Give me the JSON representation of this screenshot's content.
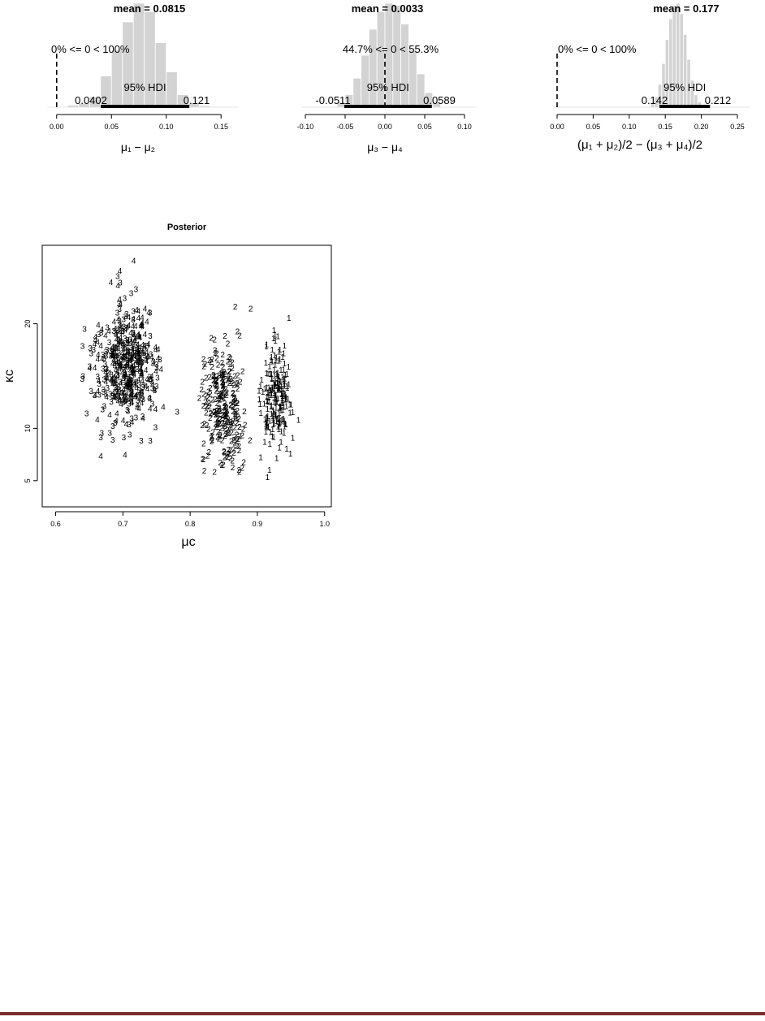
{
  "colors": {
    "bar": "#d3d3d3",
    "bar_stroke": "#ffffff",
    "hdi": "#000000",
    "group1": "#ff0000",
    "group2": "#0000ff",
    "group3": "#00d000",
    "group4": "#000000",
    "footer_rule": "#7b2c2c"
  },
  "chart_data": [
    {
      "type": "bar",
      "subtype": "posterior-histogram",
      "mean_label": "mean = 0.0815",
      "compare_label": "0% <= 0 < 100%",
      "hdi_label": "95% HDI",
      "hdi_low_label": "0.0402",
      "hdi_high_label": "0.121",
      "hdi": [
        0.0402,
        0.121
      ],
      "compare_value": 0,
      "xlabel": "μ₁ − μ₂",
      "xlim": [
        -0.005,
        0.155
      ],
      "xticks": [
        "0.00",
        "0.05",
        "0.10",
        "0.15"
      ],
      "xtick_values": [
        0.0,
        0.05,
        0.1,
        0.15
      ],
      "bin_start": 0.01,
      "bin_width": 0.01,
      "density": [
        0.02,
        0.04,
        0.1,
        0.3,
        0.55,
        0.82,
        1.0,
        0.92,
        0.62,
        0.34,
        0.12,
        0.04,
        0.015
      ]
    },
    {
      "type": "bar",
      "subtype": "posterior-histogram",
      "mean_label": "mean = 0.0033",
      "compare_label": "44.7% <= 0 < 55.3%",
      "hdi_label": "95% HDI",
      "hdi_low_label": "-0.0511",
      "hdi_high_label": "0.0589",
      "hdi": [
        -0.0511,
        0.0589
      ],
      "compare_value": 0,
      "xlabel": "μ₃ − μ₄",
      "xlim": [
        -0.1,
        0.1
      ],
      "xticks": [
        "-0.10",
        "-0.05",
        "0.00",
        "0.05",
        "0.10"
      ],
      "xtick_values": [
        -0.1,
        -0.05,
        0.0,
        0.05,
        0.1
      ],
      "bin_start": -0.06,
      "bin_width": 0.01,
      "density": [
        0.05,
        0.12,
        0.28,
        0.5,
        0.75,
        0.92,
        1.0,
        0.98,
        0.8,
        0.55,
        0.32,
        0.14,
        0.05
      ]
    },
    {
      "type": "bar",
      "subtype": "posterior-histogram",
      "mean_label": "mean = 0.177",
      "compare_label": "0% <= 0 < 100%",
      "hdi_label": "95% HDI",
      "hdi_low_label": "0.142",
      "hdi_high_label": "0.212",
      "hdi": [
        0.142,
        0.212
      ],
      "compare_value": 0,
      "xlabel": "(μ₁ + μ₂)/2 − (μ₃ + μ₄)/2",
      "xlim": [
        0.0,
        0.25
      ],
      "xticks": [
        "0.00",
        "0.05",
        "0.10",
        "0.15",
        "0.20",
        "0.25"
      ],
      "xtick_values": [
        0.0,
        0.05,
        0.1,
        0.15,
        0.2,
        0.25
      ],
      "bin_start": 0.13,
      "bin_width": 0.005,
      "density": [
        0.04,
        0.1,
        0.22,
        0.42,
        0.65,
        0.85,
        0.98,
        1.0,
        0.9,
        0.7,
        0.46,
        0.26,
        0.12,
        0.05
      ]
    },
    {
      "type": "scatter",
      "title": "Posterior",
      "xlabel": "μc",
      "ylabel": "κc",
      "xlim": [
        0.58,
        1.01
      ],
      "ylim": [
        2.5,
        27.5
      ],
      "xticks": [
        "0.6",
        "0.7",
        "0.8",
        "0.9",
        "1.0"
      ],
      "xtick_values": [
        0.6,
        0.7,
        0.8,
        0.9,
        1.0
      ],
      "yticks": [
        "5",
        "10",
        "20"
      ],
      "ytick_values": [
        5,
        10,
        20
      ],
      "series": [
        {
          "name": "1",
          "color_key": "group1",
          "x_mean": 0.928,
          "x_sd": 0.012,
          "y_mean": 13.0,
          "y_sd": 2.3,
          "y_min": 5.0,
          "y_max": 21.0,
          "n": 200,
          "outliers": [
            [
              0.915,
              5.3
            ],
            [
              0.918,
              6.0
            ],
            [
              0.905,
              7.2
            ],
            [
              0.947,
              20.5
            ]
          ]
        },
        {
          "name": "2",
          "color_key": "group2",
          "x_mean": 0.848,
          "x_sd": 0.016,
          "y_mean": 12.3,
          "y_sd": 2.7,
          "y_min": 5.8,
          "y_max": 21.5,
          "n": 260,
          "outliers": [
            [
              0.821,
              5.9
            ],
            [
              0.867,
              21.6
            ],
            [
              0.89,
              21.4
            ],
            [
              0.82,
              7.0
            ]
          ]
        },
        {
          "name": "3",
          "color_key": "group3",
          "x_mean": 0.705,
          "x_sd": 0.024,
          "y_mean": 15.6,
          "y_sd": 2.9,
          "y_min": 8.8,
          "y_max": 24.5,
          "n": 200,
          "outliers": [
            [
              0.667,
              9.1
            ],
            [
              0.685,
              10.2
            ],
            [
              0.692,
              24.5
            ]
          ]
        },
        {
          "name": "4",
          "color_key": "group4",
          "x_mean": 0.708,
          "x_sd": 0.022,
          "y_mean": 16.2,
          "y_sd": 2.9,
          "y_min": 7.2,
          "y_max": 26.0,
          "n": 260,
          "outliers": [
            [
              0.667,
              7.3
            ],
            [
              0.716,
              26.0
            ],
            [
              0.662,
              10.8
            ]
          ]
        }
      ]
    }
  ]
}
